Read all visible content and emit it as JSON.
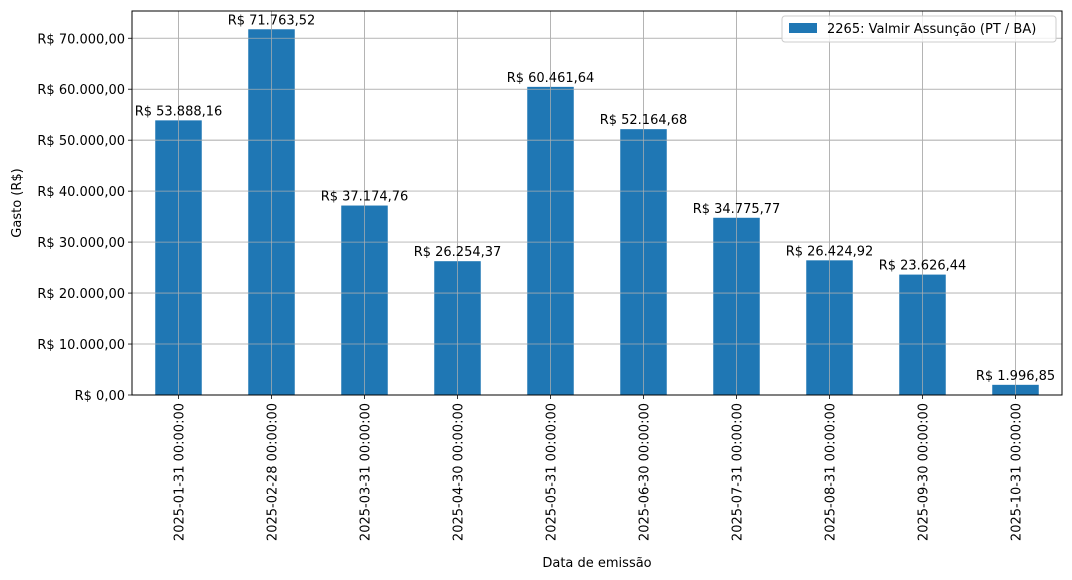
{
  "chart_data": {
    "type": "bar",
    "title": "",
    "xlabel": "Data de emissão",
    "ylabel": "Gasto (R$)",
    "ylim": [
      0,
      75347.7
    ],
    "y_ticks": [
      0,
      10000,
      20000,
      30000,
      40000,
      50000,
      60000,
      70000
    ],
    "y_tick_labels": [
      "R$ 0,00",
      "R$ 10.000,00",
      "R$ 20.000,00",
      "R$ 30.000,00",
      "R$ 40.000,00",
      "R$ 50.000,00",
      "R$ 60.000,00",
      "R$ 70.000,00"
    ],
    "categories": [
      "2025-01-31 00:00:00",
      "2025-02-28 00:00:00",
      "2025-03-31 00:00:00",
      "2025-04-30 00:00:00",
      "2025-05-31 00:00:00",
      "2025-06-30 00:00:00",
      "2025-07-31 00:00:00",
      "2025-08-31 00:00:00",
      "2025-09-30 00:00:00",
      "2025-10-31 00:00:00"
    ],
    "series": [
      {
        "name": "2265: Valmir Assunção (PT / BA)",
        "color": "#1f77b4",
        "values": [
          53888.16,
          71763.52,
          37174.76,
          26254.37,
          60461.64,
          52164.68,
          34775.77,
          26424.92,
          23626.44,
          1996.85
        ],
        "labels": [
          "R$ 53.888,16",
          "R$ 71.763,52",
          "R$ 37.174,76",
          "R$ 26.254,37",
          "R$ 60.461,64",
          "R$ 52.164,68",
          "R$ 34.775,77",
          "R$ 26.424,92",
          "R$ 23.626,44",
          "R$ 1.996,85"
        ]
      }
    ],
    "grid": true,
    "legend_position": "top-right"
  }
}
